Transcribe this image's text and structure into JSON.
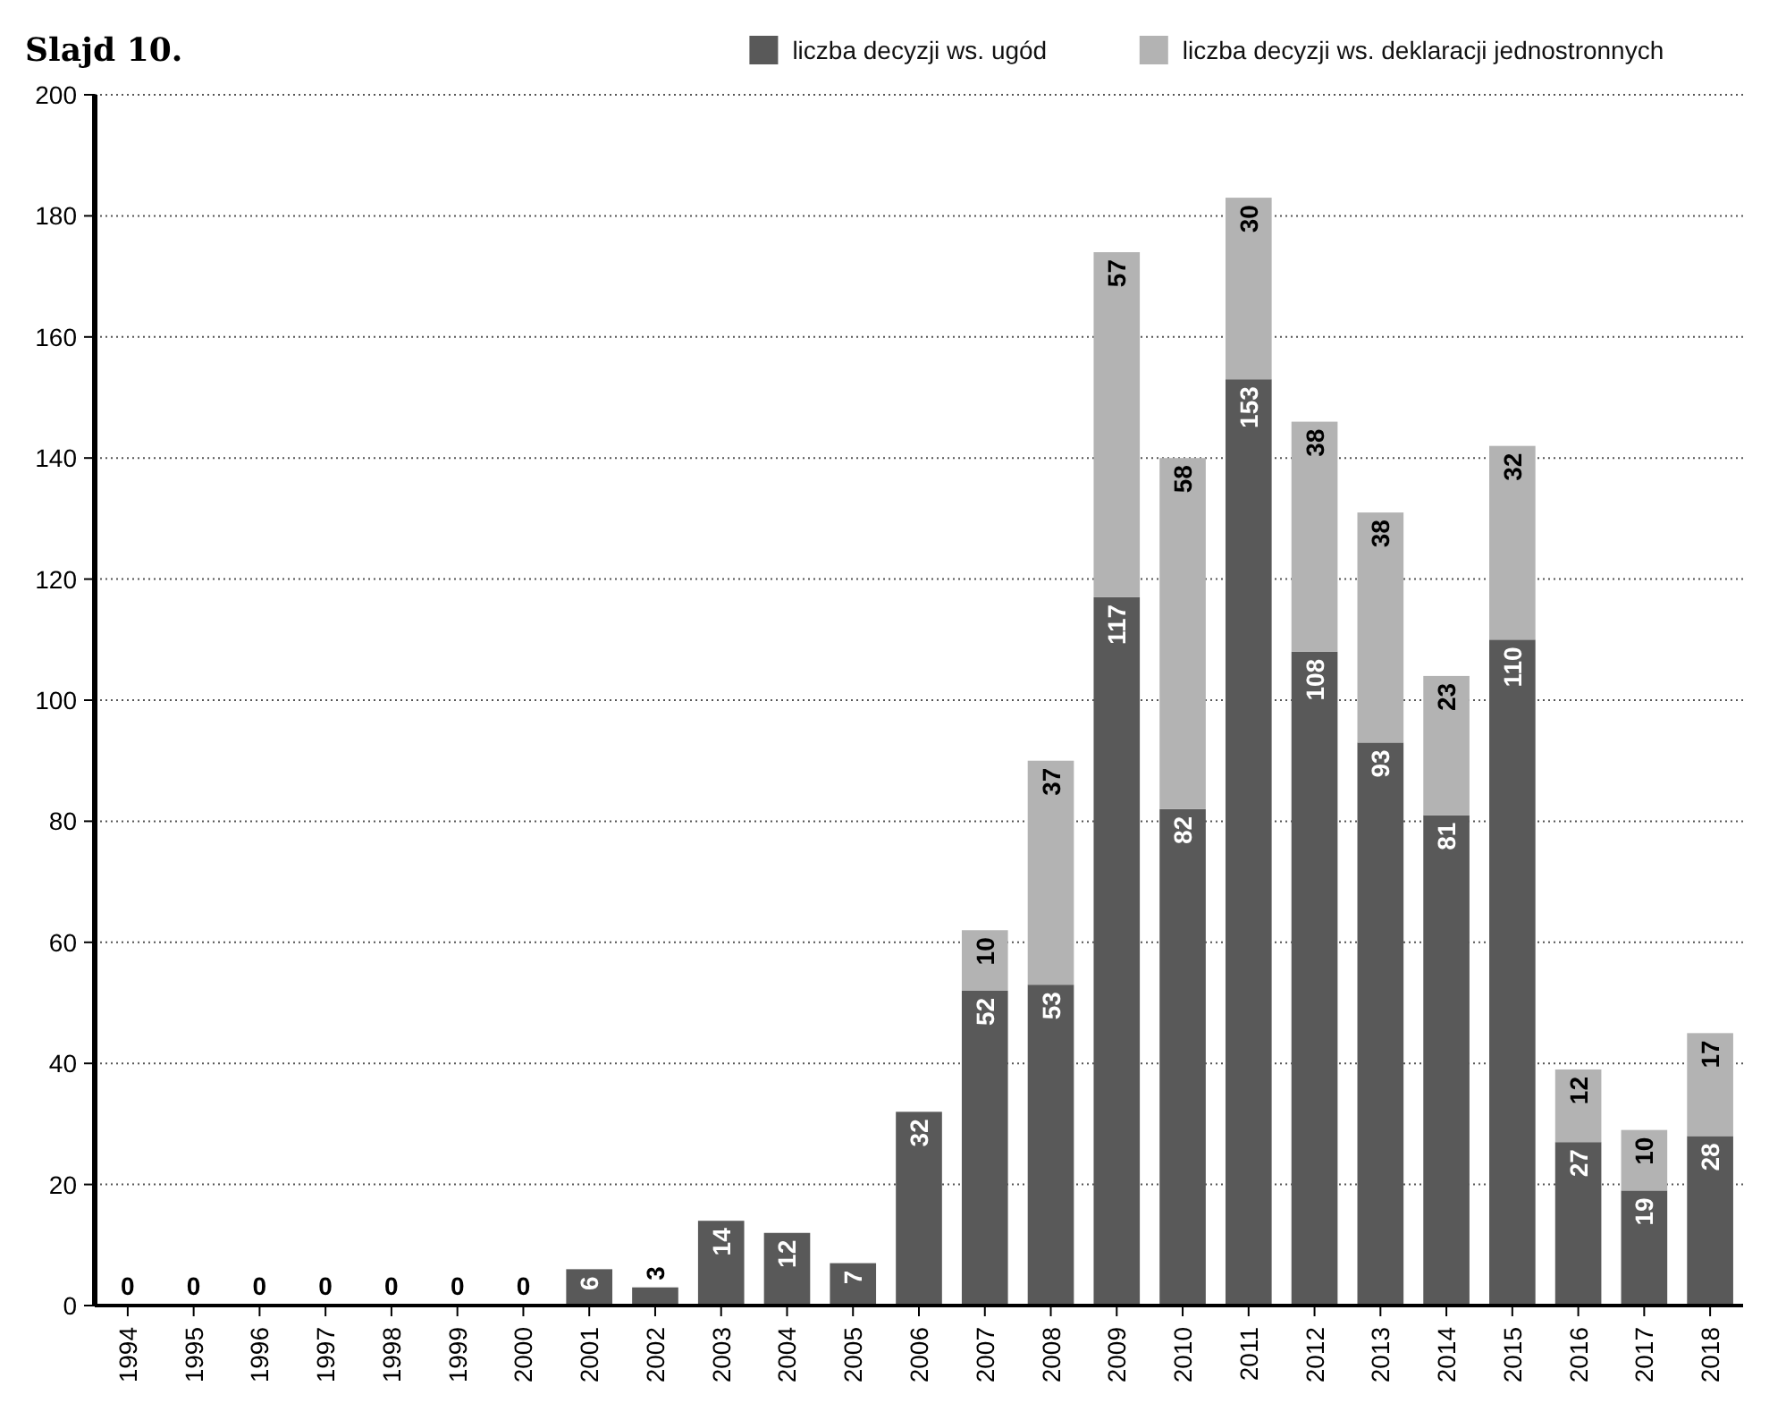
{
  "chart_data": {
    "type": "bar",
    "title": "Slajd 10.",
    "stacked": true,
    "legend": "top right",
    "grid": "y",
    "categories": [
      "1994",
      "1995",
      "1996",
      "1997",
      "1998",
      "1999",
      "2000",
      "2001",
      "2002",
      "2003",
      "2004",
      "2005",
      "2006",
      "2007",
      "2008",
      "2009",
      "2010",
      "2011",
      "2012",
      "2013",
      "2014",
      "2015",
      "2016",
      "2017",
      "2018"
    ],
    "series": [
      {
        "name": "liczba decyzji ws. ugód",
        "color": "#595959",
        "values": [
          0,
          0,
          0,
          0,
          0,
          0,
          0,
          6,
          3,
          14,
          12,
          7,
          32,
          52,
          53,
          117,
          82,
          153,
          108,
          93,
          81,
          110,
          27,
          19,
          28
        ],
        "value_labels": [
          "0",
          "0",
          "0",
          "0",
          "0",
          "0",
          "0",
          "6",
          "3",
          "14",
          "12",
          "7",
          "32",
          "52",
          "53",
          "117",
          "82",
          "153",
          "108",
          "93",
          "81",
          "110",
          "27",
          "19",
          "28"
        ]
      },
      {
        "name": "liczba decyzji ws. deklaracji jednostronnych",
        "color": "#b3b3b3",
        "values": [
          0,
          0,
          0,
          0,
          0,
          0,
          0,
          0,
          0,
          0,
          0,
          0,
          0,
          10,
          37,
          57,
          58,
          30,
          38,
          38,
          23,
          32,
          12,
          10,
          17
        ],
        "value_labels": [
          null,
          null,
          null,
          null,
          null,
          null,
          null,
          null,
          null,
          null,
          null,
          null,
          null,
          "10",
          "37",
          "57",
          "58",
          "30",
          "38",
          "38",
          "23",
          "32",
          "12",
          "10",
          "17"
        ]
      }
    ],
    "ylim": [
      0,
      200
    ],
    "yticks": [
      0,
      20,
      40,
      60,
      80,
      100,
      120,
      140,
      160,
      180,
      200
    ]
  }
}
